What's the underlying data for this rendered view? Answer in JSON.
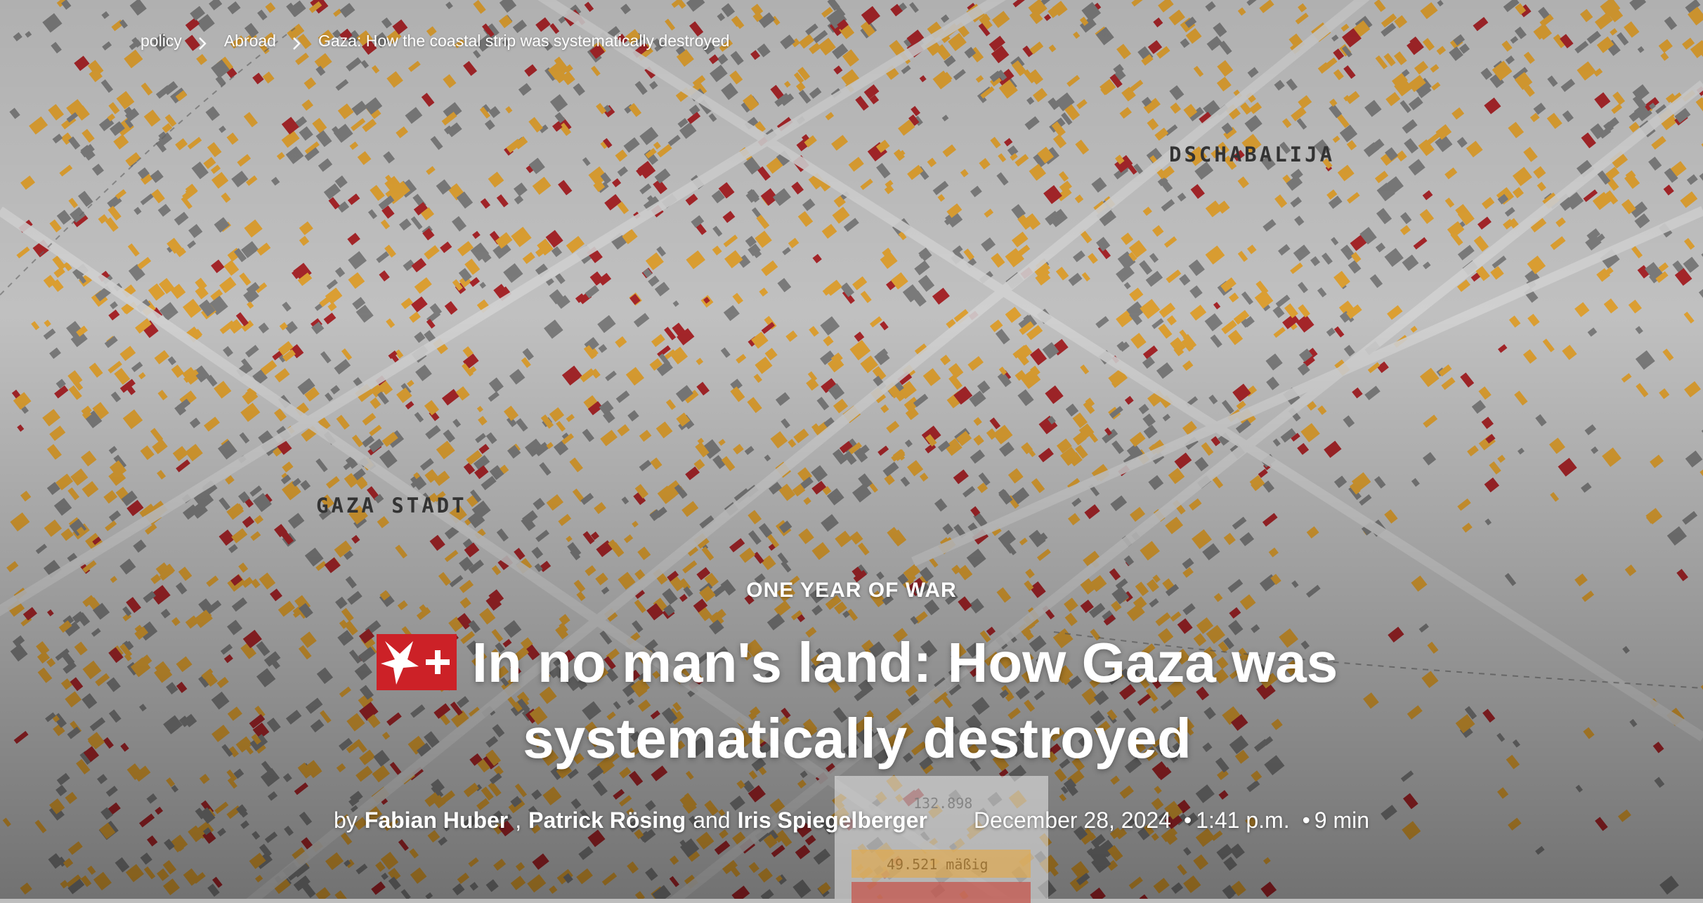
{
  "breadcrumb": {
    "items": [
      "policy",
      "Abroad",
      "Gaza: How the coastal strip was systematically destroyed"
    ]
  },
  "map": {
    "labels": [
      "DSCHABALIJA",
      "GAZA STADT"
    ],
    "legend_number": "132.898",
    "legend_moderate": "49.521 mäßig",
    "colors": {
      "destroyed": "#a8262a",
      "damaged": "#e0a233",
      "intact": "#7d7d7d",
      "ground": "#c9c9c9"
    }
  },
  "article": {
    "kicker": "ONE YEAR OF WAR",
    "badge_icon": "stern-plus-icon",
    "headline": "In no man's land: How Gaza was systematically destroyed",
    "byline": {
      "prefix": "by",
      "authors": [
        "Fabian Huber",
        "Patrick Rösing",
        "Iris Spiegelberger"
      ],
      "separator_1": ",",
      "separator_2": "and",
      "date": "December 28, 2024",
      "time": "1:41 p.m.",
      "read_time": "9 min"
    }
  }
}
